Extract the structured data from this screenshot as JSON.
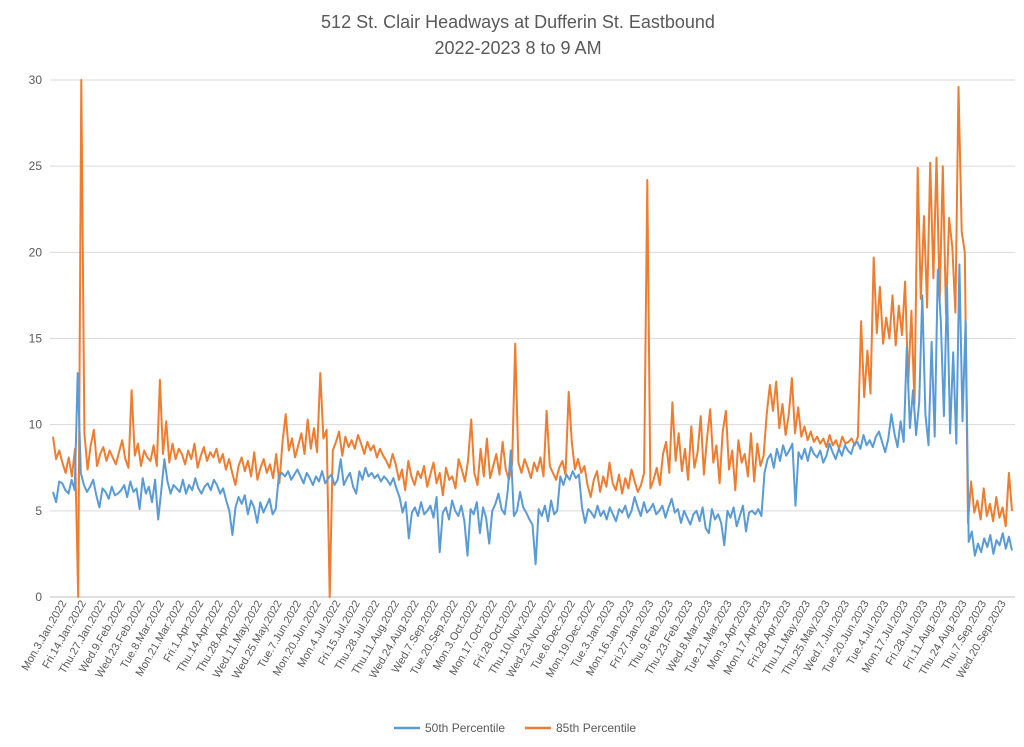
{
  "chart_data": {
    "type": "line",
    "title": "512 St. Clair Headways at Dufferin St. Eastbound",
    "subtitle": "2022-2023 8 to 9 AM",
    "xlabel": "",
    "ylabel": "",
    "ylim": [
      0,
      30
    ],
    "yticks": [
      0,
      5,
      10,
      15,
      20,
      25,
      30
    ],
    "grid": true,
    "legend": "bottom",
    "x_tick_labels": [
      "Mon.3.Jan.2022",
      "Fri.14.Jan.2022",
      "Thu.27.Jan.2022",
      "Wed.9.Feb.2022",
      "Wed.23.Feb.2022",
      "Tue.8.Mar.2022",
      "Mon.21.Mar.2022",
      "Fri.1.Apr.2022",
      "Thu.14.Apr.2022",
      "Thu.28.Apr.2022",
      "Wed.11.May.2022",
      "Wed.25.May.2022",
      "Tue.7.Jun.2022",
      "Mon.20.Jun.2022",
      "Mon.4.Jul.2022",
      "Fri.15.Jul.2022",
      "Thu.28.Jul.2022",
      "Thu.11.Aug.2022",
      "Wed.24.Aug.2022",
      "Wed.7.Sep.2022",
      "Tue.20.Sep.2022",
      "Mon.3.Oct.2022",
      "Mon.17.Oct.2022",
      "Fri.28.Oct.2022",
      "Thu.10.Nov.2022",
      "Wed.23.Nov.2022",
      "Tue.6.Dec.2022",
      "Mon.19.Dec.2022",
      "Tue.3.Jan.2023",
      "Mon.16.Jan.2023",
      "Fri.27.Jan.2023",
      "Thu.9.Feb.2023",
      "Thu.23.Feb.2023",
      "Wed.8.Mar.2023",
      "Tue.21.Mar.2023",
      "Mon.3.Apr.2023",
      "Mon.17.Apr.2023",
      "Fri.28.Apr.2023",
      "Thu.11.May.2023",
      "Thu.25.May.2023",
      "Wed.7.Jun.2023",
      "Tue.20.Jun.2023",
      "Tue.4.Jul.2023",
      "Mon.17.Jul.2023",
      "Fri.28.Jul.2023",
      "Fri.11.Aug.2023",
      "Thu.24.Aug.2023",
      "Thu.7.Sep.2023",
      "Wed.20.Sep.2023"
    ],
    "series": [
      {
        "name": "50th Percentile",
        "color": "#5B9BD5",
        "values": [
          6.1,
          5.5,
          6.7,
          6.6,
          6.2,
          6.0,
          6.8,
          6.2,
          13.0,
          7.2,
          6.5,
          6.1,
          6.4,
          6.8,
          5.9,
          5.2,
          6.3,
          6.1,
          5.7,
          6.4,
          5.9,
          6.0,
          6.2,
          6.5,
          5.8,
          6.7,
          6.1,
          6.3,
          5.1,
          6.9,
          6.0,
          6.4,
          5.5,
          6.8,
          4.5,
          6.2,
          8.0,
          6.7,
          6.0,
          6.5,
          6.3,
          6.1,
          6.8,
          6.0,
          6.5,
          6.2,
          6.9,
          6.3,
          6.0,
          6.4,
          6.6,
          6.2,
          6.8,
          6.5,
          6.0,
          6.3,
          5.6,
          5.0,
          3.6,
          5.2,
          5.8,
          5.4,
          5.9,
          4.8,
          5.6,
          5.2,
          4.3,
          5.5,
          4.9,
          5.3,
          5.7,
          4.8,
          5.1,
          7.0,
          7.2,
          7.0,
          7.3,
          6.8,
          7.1,
          7.4,
          7.0,
          6.6,
          7.2,
          6.9,
          6.5,
          7.0,
          6.7,
          7.3,
          6.6,
          6.9,
          7.1,
          6.5,
          6.8,
          8.0,
          6.5,
          6.9,
          7.2,
          6.4,
          6.0,
          7.3,
          6.8,
          7.5,
          7.0,
          7.2,
          6.9,
          7.1,
          6.7,
          7.0,
          6.8,
          6.5,
          6.9,
          6.3,
          5.8,
          4.9,
          5.5,
          3.4,
          4.9,
          5.2,
          4.7,
          5.5,
          4.8,
          5.0,
          5.3,
          4.6,
          5.8,
          2.6,
          4.9,
          5.2,
          4.5,
          5.6,
          5.0,
          4.7,
          5.3,
          4.4,
          2.4,
          5.1,
          4.8,
          5.5,
          3.7,
          5.2,
          4.6,
          3.1,
          5.0,
          5.4,
          6.0,
          5.1,
          4.8,
          6.2,
          8.5,
          4.7,
          5.0,
          6.1,
          5.2,
          4.9,
          4.5,
          4.2,
          1.9,
          5.1,
          4.7,
          5.3,
          4.4,
          5.6,
          4.8,
          5.0,
          7.0,
          6.5,
          7.1,
          6.8,
          7.3,
          6.9,
          7.1,
          5.2,
          4.3,
          5.1,
          4.9,
          4.6,
          5.3,
          4.7,
          5.0,
          4.5,
          5.2,
          4.8,
          4.4,
          5.1,
          4.9,
          5.3,
          4.6,
          5.0,
          5.8,
          5.2,
          4.7,
          5.5,
          4.9,
          5.1,
          5.4,
          4.8,
          5.0,
          5.3,
          4.6,
          5.2,
          5.7,
          4.9,
          5.1,
          4.3,
          5.0,
          4.6,
          4.2,
          4.8,
          5.0,
          4.4,
          5.2,
          4.0,
          3.7,
          5.1,
          4.5,
          4.8,
          4.3,
          3.0,
          5.0,
          4.6,
          5.2,
          4.1,
          4.7,
          5.3,
          3.8,
          4.9,
          5.0,
          4.8,
          5.1,
          4.7,
          7.2,
          8.0,
          8.3,
          7.5,
          8.6,
          7.9,
          8.8,
          8.2,
          8.5,
          8.9,
          5.3,
          8.4,
          8.0,
          8.6,
          7.9,
          8.7,
          8.3,
          8.1,
          8.5,
          7.8,
          8.2,
          8.9,
          8.4,
          8.0,
          8.6,
          8.2,
          8.8,
          8.5,
          8.3,
          8.9,
          9.0,
          8.6,
          9.4,
          8.8,
          9.1,
          8.7,
          9.3,
          9.6,
          9.0,
          8.4,
          9.2,
          10.6,
          9.5,
          8.7,
          10.2,
          9.0,
          14.5,
          9.8,
          12.0,
          9.4,
          11.3,
          17.5,
          10.6,
          8.8,
          14.8,
          9.3,
          19.0,
          16.0,
          10.5,
          18.0,
          9.5,
          14.2,
          8.9,
          19.3,
          10.2,
          16.0,
          3.2,
          3.8,
          2.4,
          3.1,
          2.6,
          3.4,
          2.9,
          3.6,
          2.5,
          3.3,
          3.0,
          3.7,
          2.8,
          3.5,
          2.7
        ],
        "value_step_note": ""
      },
      {
        "name": "85th Percentile",
        "color": "#ED7D31",
        "values": [
          9.3,
          8.0,
          8.5,
          7.8,
          7.2,
          8.1,
          7.0,
          8.6,
          0.0,
          30.0,
          9.5,
          7.4,
          8.8,
          9.7,
          7.6,
          8.3,
          8.7,
          7.9,
          8.5,
          8.1,
          7.7,
          8.4,
          9.1,
          8.0,
          7.5,
          12.0,
          8.2,
          8.9,
          7.6,
          8.5,
          8.1,
          7.9,
          8.8,
          7.6,
          12.6,
          8.3,
          10.2,
          7.8,
          8.9,
          8.0,
          8.6,
          8.3,
          7.7,
          8.5,
          8.0,
          8.9,
          7.5,
          8.2,
          8.7,
          7.9,
          8.4,
          8.1,
          8.6,
          7.8,
          8.3,
          7.4,
          8.0,
          7.2,
          6.5,
          7.6,
          8.1,
          7.3,
          7.9,
          7.0,
          8.4,
          6.8,
          7.5,
          8.0,
          7.2,
          7.7,
          6.9,
          8.3,
          6.6,
          9.0,
          10.6,
          8.5,
          9.2,
          8.1,
          8.8,
          9.5,
          8.3,
          10.3,
          8.6,
          9.8,
          8.4,
          13.0,
          9.2,
          9.7,
          0.0,
          8.5,
          9.0,
          9.6,
          8.2,
          9.3,
          8.7,
          9.1,
          8.6,
          9.4,
          8.9,
          8.3,
          9.0,
          8.5,
          8.8,
          8.1,
          8.6,
          8.2,
          7.9,
          7.5,
          8.3,
          7.7,
          6.8,
          7.4,
          6.2,
          7.9,
          7.0,
          6.5,
          7.3,
          6.9,
          7.6,
          6.4,
          7.1,
          7.8,
          6.6,
          7.2,
          5.9,
          7.5,
          6.8,
          7.0,
          6.3,
          8.0,
          7.4,
          6.7,
          7.9,
          10.3,
          7.2,
          6.5,
          8.6,
          7.0,
          9.2,
          6.9,
          7.6,
          8.3,
          7.1,
          9.0,
          7.4,
          6.8,
          7.7,
          14.7,
          7.8,
          7.2,
          8.0,
          7.5,
          6.9,
          7.8,
          7.3,
          8.1,
          7.0,
          10.8,
          7.6,
          7.2,
          6.8,
          7.5,
          7.9,
          7.1,
          11.9,
          9.0,
          7.4,
          8.0,
          7.2,
          7.6,
          6.5,
          5.8,
          6.8,
          7.3,
          6.1,
          7.0,
          6.4,
          7.8,
          6.6,
          6.2,
          7.1,
          6.0,
          6.9,
          6.3,
          7.4,
          6.7,
          6.1,
          6.5,
          7.2,
          24.2,
          6.3,
          6.8,
          7.5,
          6.5,
          8.3,
          9.0,
          7.2,
          11.3,
          7.9,
          9.5,
          7.3,
          8.6,
          6.8,
          9.9,
          7.5,
          8.4,
          10.5,
          7.1,
          9.2,
          10.9,
          7.8,
          8.8,
          6.6,
          9.6,
          10.8,
          7.4,
          8.5,
          6.2,
          9.1,
          7.8,
          8.3,
          7.0,
          9.5,
          6.7,
          8.9,
          7.6,
          8.2,
          10.6,
          12.3,
          10.8,
          12.5,
          9.8,
          11.2,
          9.4,
          10.6,
          12.7,
          9.5,
          11.0,
          9.3,
          9.9,
          9.1,
          9.6,
          9.0,
          9.3,
          8.9,
          9.2,
          8.7,
          9.4,
          8.8,
          9.1,
          8.6,
          9.3,
          8.9,
          9.0,
          9.2,
          8.8,
          9.3,
          16.0,
          11.6,
          14.3,
          11.8,
          19.7,
          15.3,
          18.0,
          14.7,
          16.2,
          15.0,
          17.5,
          14.6,
          16.9,
          15.2,
          18.3,
          12.4,
          16.6,
          11.2,
          24.9,
          17.3,
          22.1,
          16.8,
          25.2,
          18.5,
          25.5,
          17.2,
          25.0,
          16.4,
          22.0,
          20.3,
          16.5,
          29.6,
          21.2,
          20.0,
          4.3,
          6.7,
          4.9,
          5.6,
          4.5,
          6.3,
          4.7,
          5.4,
          4.4,
          5.8,
          4.6,
          5.2,
          4.1,
          7.2,
          5.0
        ],
        "value_step_note": ""
      }
    ]
  }
}
